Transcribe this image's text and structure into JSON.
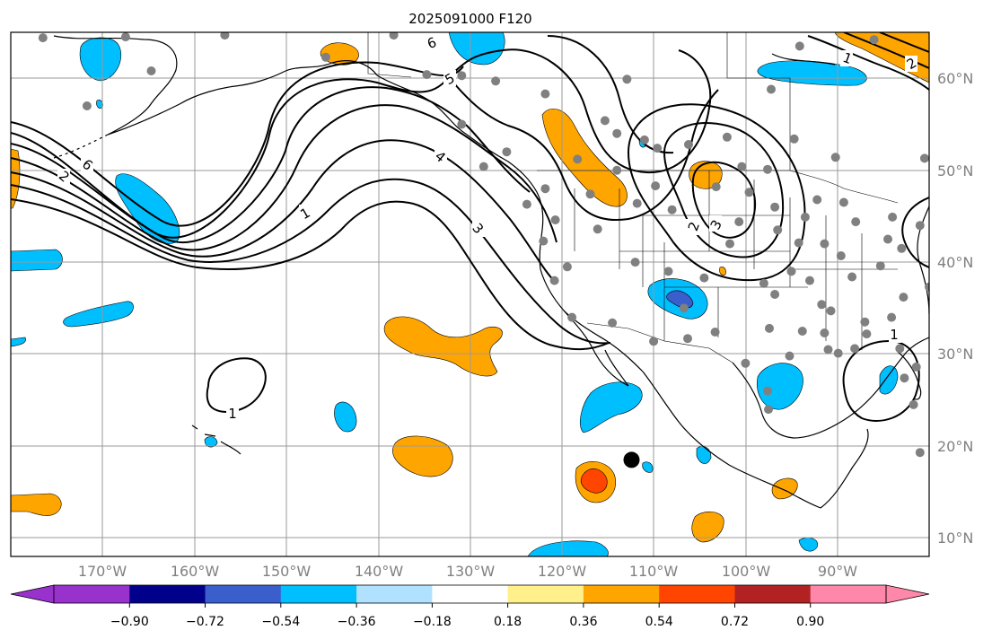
{
  "title": "2025091000 F120",
  "lat_labels": [
    "60°N",
    "50°N",
    "40°N",
    "30°N",
    "20°N",
    "10°N"
  ],
  "lon_labels": [
    "170°W",
    "160°W",
    "150°W",
    "140°W",
    "130°W",
    "120°W",
    "110°W",
    "100°W",
    "90°W"
  ],
  "colorbar": {
    "ticks": [
      "−0.90",
      "−0.72",
      "−0.54",
      "−0.36",
      "−0.18",
      "0.18",
      "0.36",
      "0.54",
      "0.72",
      "0.90"
    ],
    "colors": [
      "#9932cc",
      "#00008b",
      "#3a5fcd",
      "#00bfff",
      "#b0e2ff",
      "#ffffff",
      "#fff08c",
      "#ffa500",
      "#ff4500",
      "#b22222",
      "#ff88aa"
    ]
  },
  "contour_labels": [
    "1",
    "1",
    "1",
    "1",
    "2",
    "2",
    "2",
    "3",
    "3",
    "4",
    "5",
    "6",
    "6"
  ],
  "chart_data": {
    "type": "map",
    "title": "2025091000 F120",
    "projection": "PlateCarree",
    "lon_range": [
      -180,
      -80
    ],
    "lat_range": [
      8,
      65
    ],
    "contour_levels_shown": [
      1,
      2,
      3,
      4,
      5,
      6
    ],
    "colorbar_levels": [
      -0.9,
      -0.72,
      -0.54,
      -0.36,
      -0.18,
      0.18,
      0.36,
      0.54,
      0.72,
      0.9
    ],
    "colors": {
      "strong_negative": "#3a5fcd",
      "negative": "#00bfff",
      "positive": "#ffa500",
      "strong_positive": "#ff4500",
      "station_dot": "#808080",
      "contour": "#000000"
    },
    "stations": [
      {
        "lon": -176.5,
        "lat": 64.4
      },
      {
        "lon": -167.5,
        "lat": 64.5
      },
      {
        "lon": -164.7,
        "lat": 60.8
      },
      {
        "lon": -171.7,
        "lat": 57.0
      },
      {
        "lon": -156.7,
        "lat": 64.7
      },
      {
        "lon": -145.7,
        "lat": 62.3
      },
      {
        "lon": -138.3,
        "lat": 64.7
      },
      {
        "lon": -134.7,
        "lat": 60.4
      },
      {
        "lon": -130.9,
        "lat": 60.3
      },
      {
        "lon": -127.2,
        "lat": 59.7
      },
      {
        "lon": -121.8,
        "lat": 58.3
      },
      {
        "lon": -112.9,
        "lat": 59.9
      },
      {
        "lon": -115.3,
        "lat": 55.4
      },
      {
        "lon": -114.0,
        "lat": 54.0
      },
      {
        "lon": -118.3,
        "lat": 51.2
      },
      {
        "lon": -126.0,
        "lat": 52.0
      },
      {
        "lon": -128.5,
        "lat": 50.4
      },
      {
        "lon": -130.9,
        "lat": 55.0
      },
      {
        "lon": -121.8,
        "lat": 48.0
      },
      {
        "lon": -123.8,
        "lat": 46.3
      },
      {
        "lon": -120.7,
        "lat": 44.6
      },
      {
        "lon": -122.0,
        "lat": 42.3
      },
      {
        "lon": -116.9,
        "lat": 47.4
      },
      {
        "lon": -114.0,
        "lat": 50.0
      },
      {
        "lon": -111.0,
        "lat": 53.3
      },
      {
        "lon": -109.6,
        "lat": 52.4
      },
      {
        "lon": -106.2,
        "lat": 52.8
      },
      {
        "lon": -102.0,
        "lat": 53.6
      },
      {
        "lon": -100.4,
        "lat": 50.4
      },
      {
        "lon": -97.6,
        "lat": 50.1
      },
      {
        "lon": -94.7,
        "lat": 53.4
      },
      {
        "lon": -109.8,
        "lat": 48.3
      },
      {
        "lon": -108.0,
        "lat": 45.7
      },
      {
        "lon": -111.8,
        "lat": 46.4
      },
      {
        "lon": -116.1,
        "lat": 43.6
      },
      {
        "lon": -112.0,
        "lat": 40.0
      },
      {
        "lon": -108.4,
        "lat": 39.0
      },
      {
        "lon": -106.7,
        "lat": 35.0
      },
      {
        "lon": -104.5,
        "lat": 38.3
      },
      {
        "lon": -101.7,
        "lat": 42.0
      },
      {
        "lon": -98.0,
        "lat": 37.7
      },
      {
        "lon": -96.8,
        "lat": 36.5
      },
      {
        "lon": -97.4,
        "lat": 32.8
      },
      {
        "lon": -95.2,
        "lat": 29.8
      },
      {
        "lon": -97.6,
        "lat": 26.0
      },
      {
        "lon": -100.0,
        "lat": 29.0
      },
      {
        "lon": -103.3,
        "lat": 32.4
      },
      {
        "lon": -106.3,
        "lat": 31.7
      },
      {
        "lon": -110.0,
        "lat": 31.4
      },
      {
        "lon": -114.5,
        "lat": 33.4
      },
      {
        "lon": -118.9,
        "lat": 34.0
      },
      {
        "lon": -120.8,
        "lat": 38.0
      },
      {
        "lon": -119.4,
        "lat": 39.5
      },
      {
        "lon": -93.8,
        "lat": 32.5
      },
      {
        "lon": -90.7,
        "lat": 34.7
      },
      {
        "lon": -87.0,
        "lat": 33.5
      },
      {
        "lon": -84.1,
        "lat": 34.0
      },
      {
        "lon": -82.7,
        "lat": 27.4
      },
      {
        "lon": -81.4,
        "lat": 28.6
      },
      {
        "lon": -83.2,
        "lat": 30.6
      },
      {
        "lon": -86.8,
        "lat": 32.2
      },
      {
        "lon": -89.9,
        "lat": 30.1
      },
      {
        "lon": -91.4,
        "lat": 32.3
      },
      {
        "lon": -88.4,
        "lat": 38.4
      },
      {
        "lon": -85.3,
        "lat": 39.6
      },
      {
        "lon": -83.0,
        "lat": 41.5
      },
      {
        "lon": -81.0,
        "lat": 44.0
      },
      {
        "lon": -84.0,
        "lat": 44.9
      },
      {
        "lon": -88.0,
        "lat": 44.4
      },
      {
        "lon": -89.3,
        "lat": 46.5
      },
      {
        "lon": -92.2,
        "lat": 46.8
      },
      {
        "lon": -93.5,
        "lat": 44.9
      },
      {
        "lon": -96.8,
        "lat": 46.0
      },
      {
        "lon": -99.6,
        "lat": 47.6
      },
      {
        "lon": -103.2,
        "lat": 48.2
      },
      {
        "lon": -100.7,
        "lat": 44.4
      },
      {
        "lon": -96.5,
        "lat": 43.5
      },
      {
        "lon": -94.2,
        "lat": 42.1
      },
      {
        "lon": -95.0,
        "lat": 39.0
      },
      {
        "lon": -89.6,
        "lat": 40.7
      },
      {
        "lon": -91.4,
        "lat": 42.0
      },
      {
        "lon": -90.2,
        "lat": 51.4
      },
      {
        "lon": -97.2,
        "lat": 58.8
      },
      {
        "lon": -94.1,
        "lat": 63.5
      },
      {
        "lon": -86.0,
        "lat": 64.2
      },
      {
        "lon": -80.5,
        "lat": 51.3
      },
      {
        "lon": -82.8,
        "lat": 36.2
      },
      {
        "lon": -80.0,
        "lat": 37.3
      },
      {
        "lon": -88.1,
        "lat": 30.6
      },
      {
        "lon": -91.0,
        "lat": 30.5
      },
      {
        "lon": -91.7,
        "lat": 35.4
      },
      {
        "lon": -81.7,
        "lat": 24.5
      },
      {
        "lon": -81.0,
        "lat": 19.3
      },
      {
        "lon": -97.5,
        "lat": 24.0
      },
      {
        "lon": -93.0,
        "lat": 38.0
      },
      {
        "lon": -84.5,
        "lat": 42.5
      }
    ],
    "tropical_center": {
      "lon": -112.4,
      "lat": 18.5
    }
  }
}
